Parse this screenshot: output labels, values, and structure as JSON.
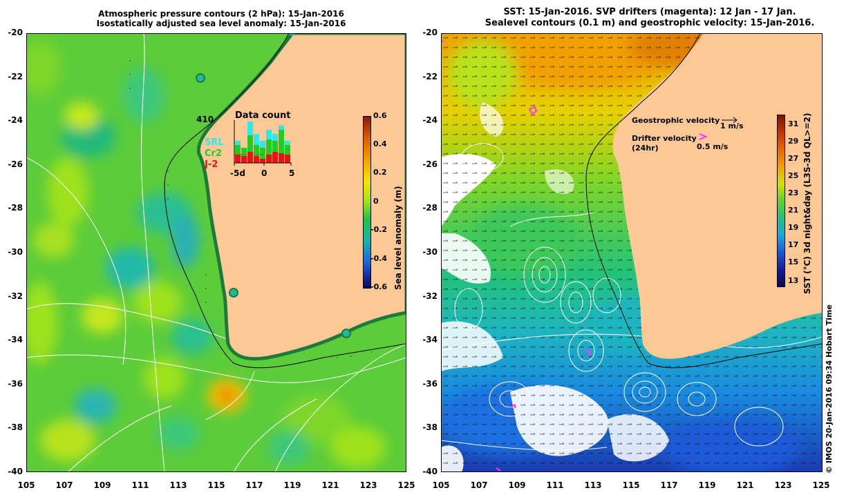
{
  "left_panel": {
    "title_line1": "Atmospheric pressure contours (2 hPa): 15-Jan-2016",
    "title_line2": "Isostatically adjusted sea level anomaly: 15-Jan-2016",
    "colorbar": {
      "title": "Sea level anomaly (m)",
      "ticks": [
        "0.6",
        "0.4",
        "0.2",
        "0",
        "-0.2",
        "-0.4",
        "-0.6"
      ],
      "colors": [
        "#8b1a00",
        "#d85a00",
        "#f4a000",
        "#f5e600",
        "#9ee21e",
        "#1fc247",
        "#1ab5a8",
        "#1a6fe0",
        "#1a2aa0",
        "#0a0a5a"
      ]
    },
    "data_count": {
      "total": "410",
      "title": "Data count",
      "legend": [
        {
          "label": "SRL",
          "color": "#33e6e6"
        },
        {
          "label": "Cr2",
          "color": "#22cc22"
        },
        {
          "label": "J-2",
          "color": "#ee1111"
        }
      ],
      "x_ticks": [
        "-5d",
        "0",
        "5"
      ]
    }
  },
  "right_panel": {
    "title_line1": "SST: 15-Jan-2016. SVP drifters (magenta): 12 Jan - 17 Jan.",
    "title_line2": "Sealevel contours (0.1 m) and geostrophic velocity: 15-Jan-2016.",
    "geo_velocity_label": "Geostrophic velocity",
    "geo_velocity_scale": "1 m/s",
    "drifter_velocity_label": "Drifter velocity",
    "drifter_velocity_sub": "(24hr)",
    "drifter_velocity_scale": "0.5 m/s",
    "drifter_color": "#ff33ff",
    "colorbar": {
      "title": "SST (°C) 3d night&day (L3S-3d QL>=2)",
      "ticks": [
        "31",
        "29",
        "27",
        "25",
        "23",
        "21",
        "19",
        "17",
        "15",
        "13"
      ],
      "colors": [
        "#7a1400",
        "#c83200",
        "#e86800",
        "#f0a000",
        "#d6e000",
        "#5fd22a",
        "#20c080",
        "#18a8e0",
        "#1a5ad8",
        "#1a1a9a",
        "#0a0a55"
      ]
    }
  },
  "axes": {
    "lat_ticks": [
      "-20",
      "-22",
      "-24",
      "-26",
      "-28",
      "-30",
      "-32",
      "-34",
      "-36",
      "-38",
      "-40"
    ],
    "lon_ticks": [
      "105",
      "107",
      "109",
      "111",
      "113",
      "115",
      "117",
      "119",
      "121",
      "123",
      "125"
    ]
  },
  "copyright": "© IMOS 20-Jan-2016 09:34 Hobart Time",
  "colors": {
    "land": "#fcc896",
    "ocean_left": "#5ccc3a",
    "contour": "#ffffff"
  }
}
